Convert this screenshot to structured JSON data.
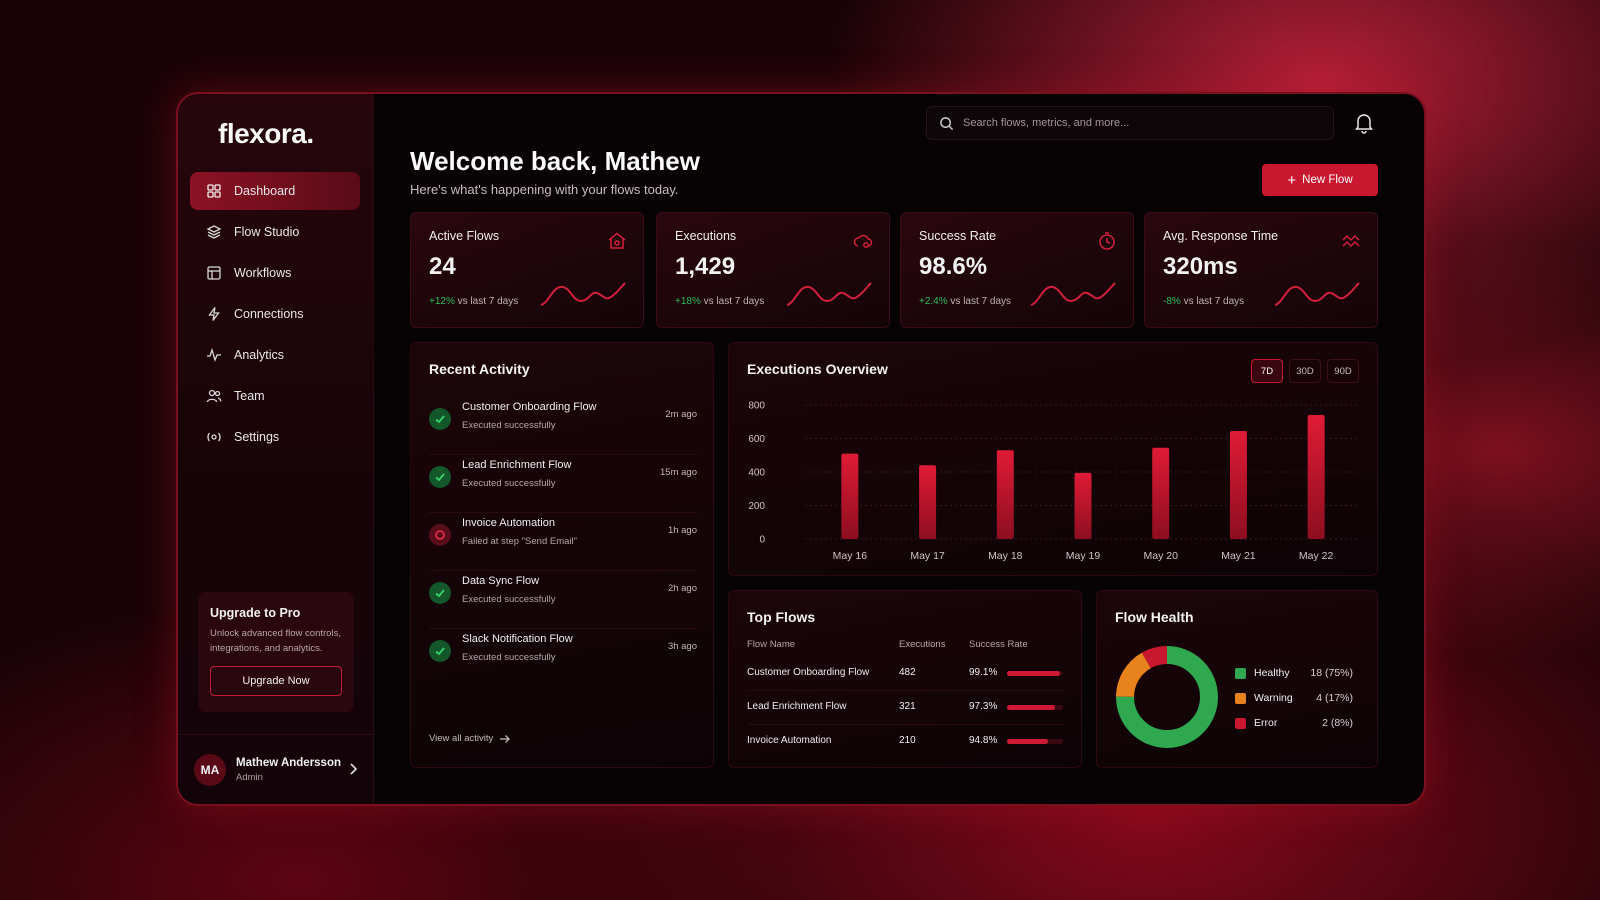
{
  "brand": {
    "logo": "flexora."
  },
  "nav": {
    "items": [
      {
        "label": "Dashboard",
        "icon": "grid-icon",
        "active": true
      },
      {
        "label": "Flow Studio",
        "icon": "layers-icon"
      },
      {
        "label": "Workflows",
        "icon": "layout-icon"
      },
      {
        "label": "Connections",
        "icon": "bolt-icon"
      },
      {
        "label": "Analytics",
        "icon": "pulse-icon"
      },
      {
        "label": "Team",
        "icon": "users-icon"
      },
      {
        "label": "Settings",
        "icon": "settings-icon"
      }
    ]
  },
  "upgrade": {
    "title": "Upgrade to Pro",
    "description": "Unlock advanced flow controls, integrations, and analytics.",
    "button": "Upgrade Now"
  },
  "user": {
    "initials": "MA",
    "name": "Mathew Andersson",
    "role": "Admin"
  },
  "header": {
    "search_placeholder": "Search flows, metrics, and more...",
    "welcome": "Welcome back, Mathew",
    "subtitle": "Here's what's happening with your flows today.",
    "new_flow": "New Flow"
  },
  "stats": [
    {
      "title": "Active Flows",
      "value": "24",
      "delta": "+12%",
      "delta_text": "vs last 7 days",
      "icon": "home-icon"
    },
    {
      "title": "Executions",
      "value": "1,429",
      "delta": "+18%",
      "delta_text": "vs last 7 days",
      "icon": "gear-cloud-icon"
    },
    {
      "title": "Success Rate",
      "value": "98.6%",
      "delta": "+2.4%",
      "delta_text": "vs last 7 days",
      "icon": "timer-icon"
    },
    {
      "title": "Avg. Response Time",
      "value": "320ms",
      "delta": "-8%",
      "delta_text": "vs last 7 days",
      "icon": "trend-icon"
    }
  ],
  "activity": {
    "title": "Recent Activity",
    "items": [
      {
        "name": "Customer Onboarding Flow",
        "status": "Executed successfully",
        "time": "2m ago",
        "state": "ok"
      },
      {
        "name": "Lead Enrichment Flow",
        "status": "Executed successfully",
        "time": "15m ago",
        "state": "ok"
      },
      {
        "name": "Invoice Automation",
        "status": "Failed at step \"Send Email\"",
        "time": "1h ago",
        "state": "fail"
      },
      {
        "name": "Data Sync Flow",
        "status": "Executed successfully",
        "time": "2h ago",
        "state": "ok"
      },
      {
        "name": "Slack Notification Flow",
        "status": "Executed successfully",
        "time": "3h ago",
        "state": "ok"
      }
    ],
    "view_all": "View all activity"
  },
  "overview": {
    "title": "Executions Overview",
    "ranges": [
      "7D",
      "30D",
      "90D"
    ],
    "active_range": "7D"
  },
  "chart_data": {
    "type": "bar",
    "title": "Executions Overview",
    "categories": [
      "May 16",
      "May 17",
      "May 18",
      "May 19",
      "May 20",
      "May 21",
      "May 22"
    ],
    "values": [
      510,
      440,
      530,
      395,
      545,
      645,
      740
    ],
    "ylim": [
      0,
      800
    ],
    "yticks": [
      0,
      200,
      400,
      600,
      800
    ],
    "grid": true,
    "bar_color": "#c8172f"
  },
  "top_flows": {
    "title": "Top Flows",
    "headers": [
      "Flow Name",
      "Executions",
      "Success Rate"
    ],
    "rows": [
      {
        "name": "Customer Onboarding Flow",
        "executions": "482",
        "rate": "99.1%",
        "rate_value": 99.1
      },
      {
        "name": "Lead Enrichment Flow",
        "executions": "321",
        "rate": "97.3%",
        "rate_value": 97.3
      },
      {
        "name": "Invoice Automation",
        "executions": "210",
        "rate": "94.8%",
        "rate_value": 94.8
      }
    ]
  },
  "flow_health": {
    "title": "Flow Health",
    "segments": [
      {
        "label": "Healthy",
        "value": "18 (75%)",
        "count": 18,
        "color": "#2fa84f"
      },
      {
        "label": "Warning",
        "value": "4 (17%)",
        "count": 4,
        "color": "#e8821c"
      },
      {
        "label": "Error",
        "value": "2 (8%)",
        "count": 2,
        "color": "#c8172f"
      }
    ]
  },
  "colors": {
    "accent": "#c8172f",
    "positive": "#2fbf5b",
    "background": "#070305"
  }
}
